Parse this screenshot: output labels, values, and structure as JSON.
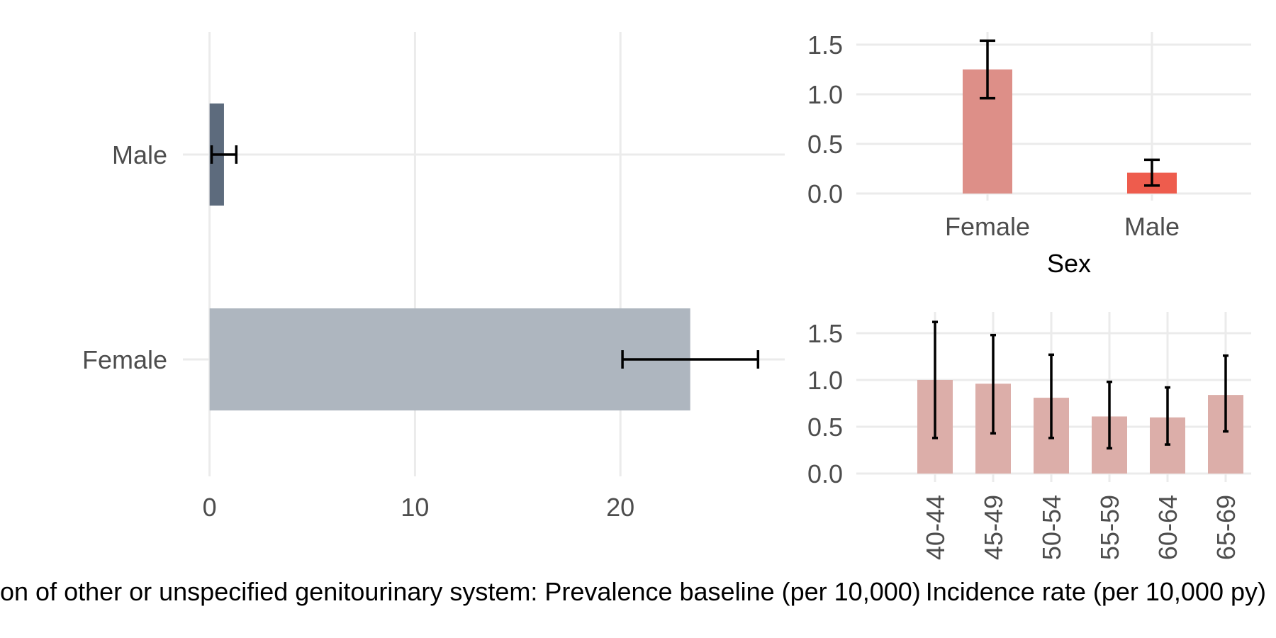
{
  "chart_data": [
    {
      "type": "bar",
      "orientation": "horizontal",
      "categories": [
        "Male",
        "Female"
      ],
      "values": [
        0.7,
        23.4
      ],
      "error_low": [
        0.1,
        20.1
      ],
      "error_high": [
        1.3,
        26.7
      ],
      "bar_colors": [
        "#5d6b7d",
        "#aeb6bf"
      ],
      "xlim": [
        -1.3,
        28.0
      ],
      "x_ticks": [
        "0",
        "10",
        "20"
      ],
      "x_tick_values": [
        0,
        10,
        20
      ],
      "xlabel": "on of other or unspecified genitourinary system: Prevalence baseline (per 10,000)",
      "grid": true
    },
    {
      "type": "bar",
      "categories": [
        "Female",
        "Male"
      ],
      "values": [
        1.25,
        0.21
      ],
      "error_low": [
        0.96,
        0.08
      ],
      "error_high": [
        1.54,
        0.34
      ],
      "bar_colors": [
        "#dd8f88",
        "#ee5c4d"
      ],
      "ylim": [
        -0.05,
        1.65
      ],
      "y_ticks": [
        "0.0",
        "0.5",
        "1.0",
        "1.5"
      ],
      "y_tick_values": [
        0,
        0.5,
        1.0,
        1.5
      ],
      "xlabel": "Sex",
      "grid": true
    },
    {
      "type": "bar",
      "categories": [
        "40-44",
        "45-49",
        "50-54",
        "55-59",
        "60-64",
        "65-69"
      ],
      "values": [
        1.0,
        0.96,
        0.81,
        0.61,
        0.6,
        0.84
      ],
      "error_low": [
        0.38,
        0.43,
        0.38,
        0.27,
        0.31,
        0.45
      ],
      "error_high": [
        1.62,
        1.48,
        1.27,
        0.98,
        0.92,
        1.26
      ],
      "bar_color": "#dcaea9",
      "ylim": [
        -0.05,
        1.7
      ],
      "y_ticks": [
        "0.0",
        "0.5",
        "1.0",
        "1.5"
      ],
      "y_tick_values": [
        0,
        0.5,
        1.0,
        1.5
      ],
      "xlabel": "Incidence rate (per 10,000 py)",
      "grid": true
    }
  ]
}
